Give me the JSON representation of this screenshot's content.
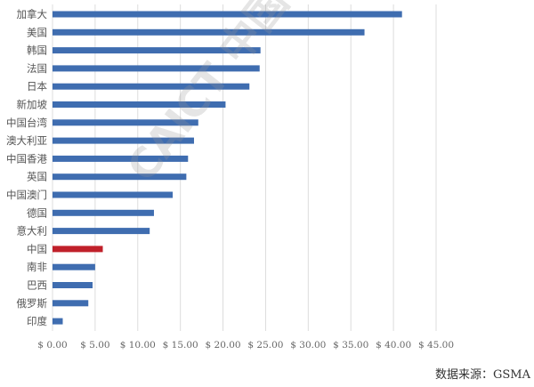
{
  "chart_data": {
    "type": "bar",
    "orientation": "horizontal",
    "categories": [
      "加拿大",
      "美国",
      "韩国",
      "法国",
      "日本",
      "新加坡",
      "中国台湾",
      "澳大利亚",
      "中国香港",
      "英国",
      "中国澳门",
      "德国",
      "意大利",
      "中国",
      "南非",
      "巴西",
      "俄罗斯",
      "印度"
    ],
    "values": [
      41.0,
      36.6,
      24.4,
      24.3,
      23.1,
      20.3,
      17.1,
      16.6,
      15.9,
      15.7,
      14.1,
      11.9,
      11.4,
      5.9,
      5.0,
      4.7,
      4.2,
      1.2
    ],
    "xlim": [
      0,
      45
    ],
    "xticks": [
      "$ 0.00",
      "$ 5.00",
      "$ 10.00",
      "$ 15.00",
      "$ 20.00",
      "$ 25.00",
      "$ 30.00",
      "$ 35.00",
      "$ 40.00",
      "$ 45.00"
    ],
    "grid": "vertical",
    "bar_color": "#3f6db0",
    "highlight_category": "中国",
    "highlight_color": "#c0202a",
    "title": "",
    "xlabel": "",
    "ylabel": ""
  },
  "source": "数据来源：GSMA",
  "watermark": "CAICT 中国信通院"
}
